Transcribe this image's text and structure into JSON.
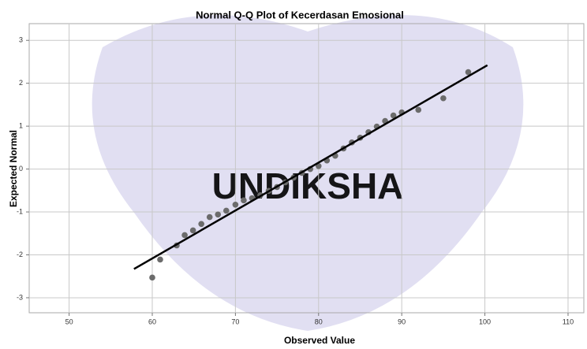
{
  "chart_data": {
    "type": "scatter",
    "title": "Normal Q-Q Plot of Kecerdasan Emosional",
    "xlabel": "Observed Value",
    "ylabel": "Expected Normal",
    "watermark": "UNDIKSHA",
    "x": [
      60,
      60.95,
      62.94,
      63.9,
      64.9,
      65.9,
      66.9,
      67.9,
      68.9,
      70,
      71,
      72,
      73,
      74,
      75,
      76,
      77,
      78,
      79,
      80,
      81,
      82,
      83,
      84,
      85,
      86,
      87,
      88,
      89,
      90,
      92,
      95,
      98
    ],
    "series": [
      {
        "color": "#6b6b6b",
        "values": [
          -2.53,
          -2.11,
          -1.78,
          -1.54,
          -1.43,
          -1.28,
          -1.12,
          -1.06,
          -0.97,
          -0.83,
          -0.73,
          -0.68,
          -0.61,
          -0.51,
          -0.42,
          -0.31,
          -0.2,
          -0.09,
          0,
          0.07,
          0.2,
          0.31,
          0.48,
          0.62,
          0.73,
          0.86,
          0.99,
          1.12,
          1.25,
          1.32,
          1.38,
          1.65,
          2.26
        ]
      }
    ],
    "reference_line": {
      "color": "#000000",
      "x": [
        57.8,
        100.3
      ],
      "y": [
        -2.33,
        2.42
      ]
    },
    "xlim": [
      45.2,
      111.9
    ],
    "xticks": [
      50,
      60,
      70,
      80,
      90,
      100,
      110
    ],
    "ylim": [
      -3.35,
      3.39
    ],
    "yticks": [
      -3,
      -2,
      -1,
      0,
      1,
      2,
      3
    ],
    "grid": true
  }
}
